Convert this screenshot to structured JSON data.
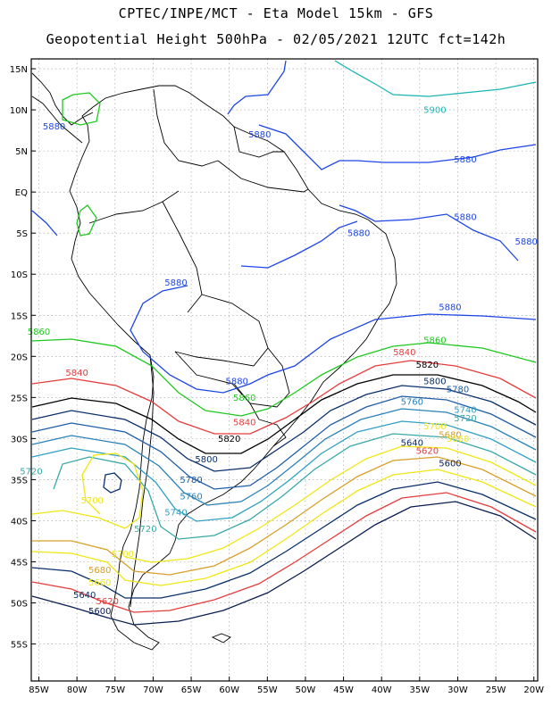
{
  "header": {
    "line1": "CPTEC/INPE/MCT -  Eta Model 15km - GFS",
    "line2": "Geopotential Height 500hPa - 02/05/2021 12UTC fct=142h"
  },
  "map": {
    "lon_range": [
      -86,
      -19.5
    ],
    "lat_range": [
      16.2,
      -59.5
    ],
    "lon_ticks": [
      "85W",
      "80W",
      "75W",
      "70W",
      "65W",
      "60W",
      "55W",
      "50W",
      "45W",
      "40W",
      "35W",
      "30W",
      "25W",
      "20W"
    ],
    "lat_ticks": [
      "15N",
      "10N",
      "5N",
      "EQ",
      "5S",
      "10S",
      "15S",
      "20S",
      "25S",
      "30S",
      "35S",
      "40S",
      "45S",
      "50S",
      "55S"
    ],
    "colors": {
      "5900": "#1ab4b4",
      "5880": "#1e46e6",
      "5860": "#1ec81e",
      "5840": "#e63c3c",
      "5820": "#000000",
      "5800": "#0a2f6b",
      "5780": "#1f5da8",
      "5760": "#2a82b8",
      "5740": "#2fa0c4",
      "5720": "#3aa8a8",
      "5700": "#f0e614",
      "5680": "#d8a02a",
      "5660": "#f0e614",
      "5640": "#0a2f6b",
      "5620": "#e63c3c",
      "5600": "#0a1e50"
    },
    "labels": [
      {
        "text": "5900",
        "lon": -33,
        "lat": 10
      },
      {
        "text": "5880",
        "lon": -83,
        "lat": 8
      },
      {
        "text": "5880",
        "lon": -56,
        "lat": 7
      },
      {
        "text": "5880",
        "lon": -29,
        "lat": 4
      },
      {
        "text": "5880",
        "lon": -29,
        "lat": -3
      },
      {
        "text": "5880",
        "lon": -43,
        "lat": -5
      },
      {
        "text": "5880",
        "lon": -21,
        "lat": -6
      },
      {
        "text": "5880",
        "lon": -67,
        "lat": -11
      },
      {
        "text": "5880",
        "lon": -31,
        "lat": -14
      },
      {
        "text": "5880",
        "lon": -59,
        "lat": -23
      },
      {
        "text": "5860",
        "lon": -85,
        "lat": -17
      },
      {
        "text": "5860",
        "lon": -33,
        "lat": -18
      },
      {
        "text": "5860",
        "lon": -58,
        "lat": -25
      },
      {
        "text": "5840",
        "lon": -80,
        "lat": -22
      },
      {
        "text": "5840",
        "lon": -37,
        "lat": -19.5
      },
      {
        "text": "5840",
        "lon": -58,
        "lat": -28
      },
      {
        "text": "5820",
        "lon": -60,
        "lat": -30
      },
      {
        "text": "5820",
        "lon": -34,
        "lat": -21
      },
      {
        "text": "5800",
        "lon": -63,
        "lat": -32.5
      },
      {
        "text": "5800",
        "lon": -33,
        "lat": -23
      },
      {
        "text": "5780",
        "lon": -65,
        "lat": -35
      },
      {
        "text": "5780",
        "lon": -30,
        "lat": -24
      },
      {
        "text": "5760",
        "lon": -65,
        "lat": -37
      },
      {
        "text": "5760",
        "lon": -36,
        "lat": -25.5
      },
      {
        "text": "5740",
        "lon": -67,
        "lat": -39
      },
      {
        "text": "5740",
        "lon": -29,
        "lat": -26.5
      },
      {
        "text": "5720",
        "lon": -71,
        "lat": -41
      },
      {
        "text": "5720",
        "lon": -29,
        "lat": -27.5
      },
      {
        "text": "5720",
        "lon": -86,
        "lat": -34
      },
      {
        "text": "5700",
        "lon": -78,
        "lat": -37.5
      },
      {
        "text": "5700",
        "lon": -33,
        "lat": -28.5
      },
      {
        "text": "5700",
        "lon": -74,
        "lat": -44
      },
      {
        "text": "5680",
        "lon": -31,
        "lat": -29.5
      },
      {
        "text": "5680",
        "lon": -77,
        "lat": -46
      },
      {
        "text": "5660",
        "lon": -77,
        "lat": -47.5
      },
      {
        "text": "5660",
        "lon": -30,
        "lat": -30
      },
      {
        "text": "5640",
        "lon": -79,
        "lat": -49
      },
      {
        "text": "5640",
        "lon": -36,
        "lat": -30.5
      },
      {
        "text": "5620",
        "lon": -76,
        "lat": -49.8
      },
      {
        "text": "5620",
        "lon": -34,
        "lat": -31.5
      },
      {
        "text": "5600",
        "lon": -77,
        "lat": -51
      },
      {
        "text": "5600",
        "lon": -31,
        "lat": -33
      }
    ]
  }
}
